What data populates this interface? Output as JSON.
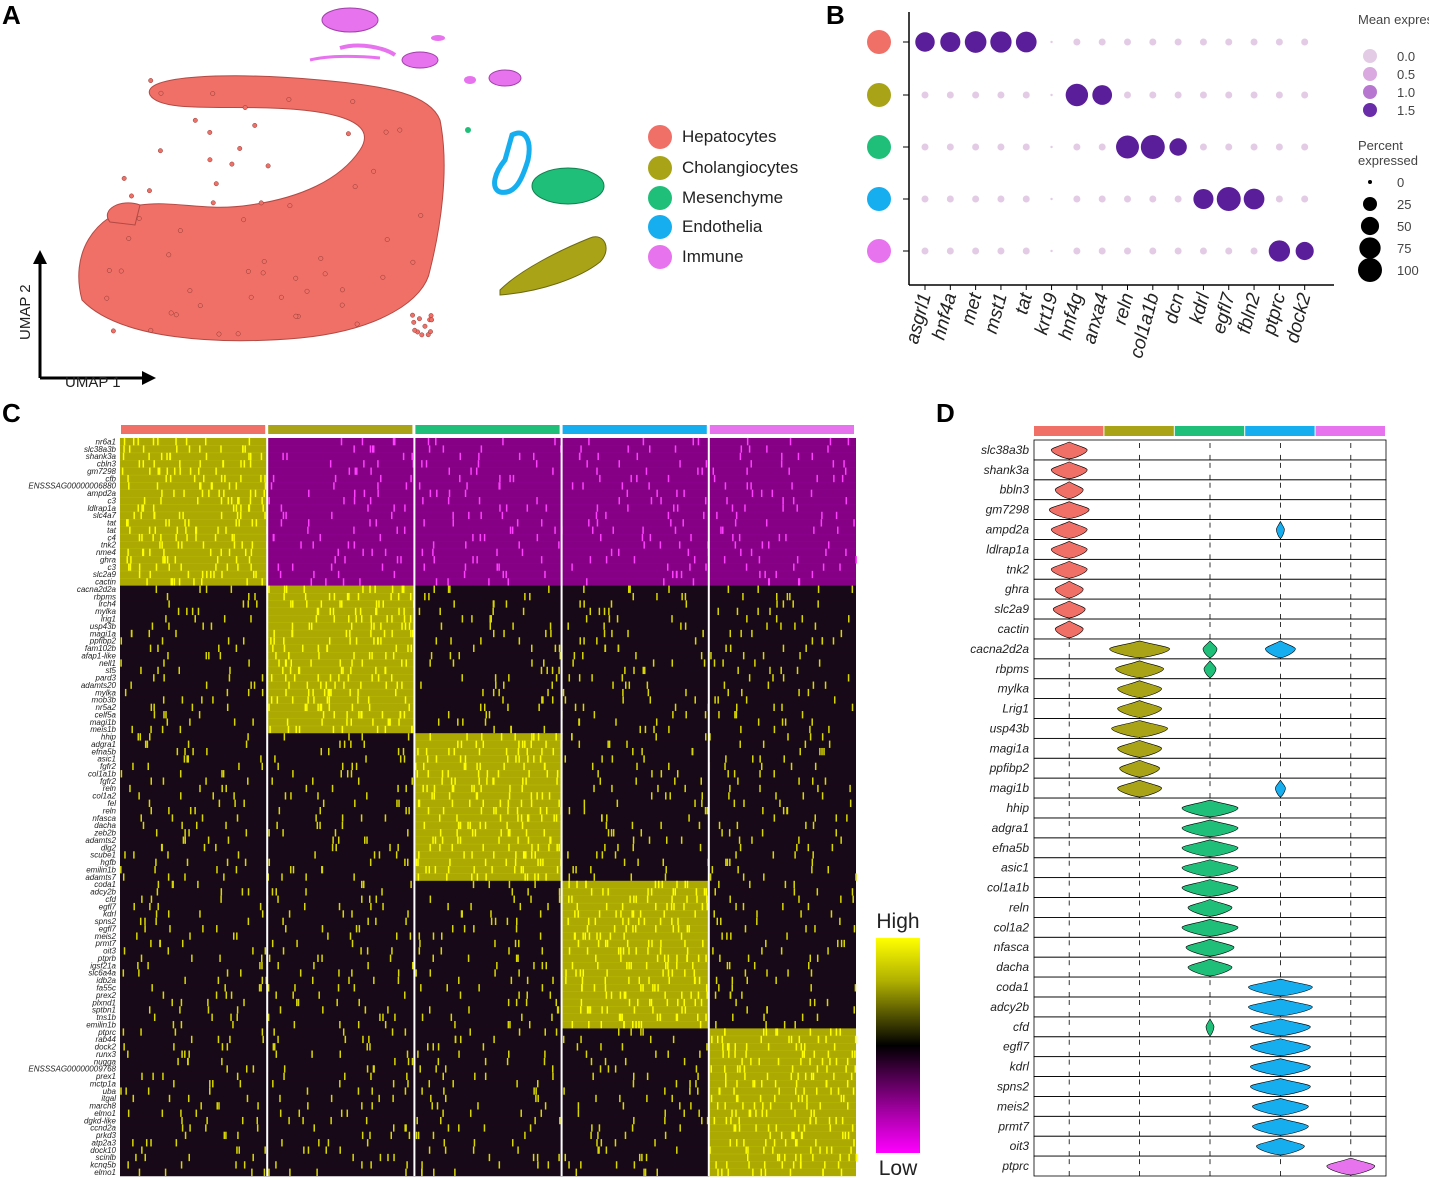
{
  "panel_labels": {
    "a": "A",
    "b": "B",
    "c": "C",
    "d": "D"
  },
  "colors": {
    "Hepatocytes": "#f07067",
    "Cholangiocytes": "#a8a317",
    "Mesenchyme": "#1fbf7a",
    "Endothelia": "#17aef0",
    "Immune": "#e873ef",
    "high": "#ffff00",
    "mid": "#000000",
    "low": "#ff00ff",
    "dot_dark": "#5a1e9a",
    "dot_light": "#e3cbe6"
  },
  "chart_data": [
    {
      "id": "umap",
      "type": "scatter",
      "title": "",
      "xlabel": "UMAP 1",
      "ylabel": "UMAP 2",
      "legend_position": "right",
      "legend": [
        "Hepatocytes",
        "Cholangiocytes",
        "Mesenchyme",
        "Endothelia",
        "Immune"
      ]
    },
    {
      "id": "dotplot",
      "type": "scatter",
      "title": "",
      "genes": [
        "asgrl1",
        "hnf4a",
        "met",
        "mst1",
        "tat",
        "krt19",
        "hnf4g",
        "anxa4",
        "reln",
        "col1a1b",
        "dcn",
        "kdrl",
        "egfl7",
        "fbln2",
        "ptprc",
        "dock2"
      ],
      "groups": [
        "Hepatocytes",
        "Cholangiocytes",
        "Mesenchyme",
        "Endothelia",
        "Immune"
      ],
      "color_legend_title": "Mean expression",
      "color_legend_values": [
        "0.0",
        "0.5",
        "1.0",
        "1.5"
      ],
      "size_legend_title": "Percent expressed",
      "size_legend_values": [
        "0",
        "25",
        "50",
        "75",
        "100"
      ],
      "expressed": [
        {
          "group": "Hepatocytes",
          "genes": [
            "asgrl1",
            "hnf4a",
            "met",
            "mst1",
            "tat"
          ],
          "percent": [
            60,
            65,
            78,
            75,
            70
          ],
          "mean": [
            1.6,
            1.6,
            1.6,
            1.6,
            1.6
          ]
        },
        {
          "group": "Cholangiocytes",
          "genes": [
            "hnf4g",
            "anxa4"
          ],
          "percent": [
            85,
            62
          ],
          "mean": [
            1.6,
            1.6
          ]
        },
        {
          "group": "Mesenchyme",
          "genes": [
            "reln",
            "col1a1b",
            "dcn"
          ],
          "percent": [
            90,
            100,
            45
          ],
          "mean": [
            1.6,
            1.6,
            1.5
          ]
        },
        {
          "group": "Endothelia",
          "genes": [
            "kdrl",
            "egfl7",
            "fbln2"
          ],
          "percent": [
            65,
            100,
            70
          ],
          "mean": [
            1.6,
            1.6,
            1.6
          ]
        },
        {
          "group": "Immune",
          "genes": [
            "ptprc",
            "dock2"
          ],
          "percent": [
            75,
            50
          ],
          "mean": [
            1.6,
            1.5
          ]
        }
      ]
    },
    {
      "id": "heatmap",
      "type": "heatmap",
      "title": "",
      "groups": [
        "Hepatocytes",
        "Cholangiocytes",
        "Mesenchyme",
        "Endothelia",
        "Immune"
      ],
      "scale_high": "High",
      "scale_low": "Low",
      "gene_blocks": [
        {
          "group": "Hepatocytes",
          "genes": [
            "nr6a1",
            "slc38a3b",
            "shank3a",
            "cbln3",
            "gm7298",
            "cfb",
            "ENSSSAG00000006880",
            "ampd2a",
            "c3",
            "ldlrap1a",
            "slc4a7",
            "tat",
            "tat",
            "c4",
            "tnk2",
            "nme4",
            "ghra",
            "c3",
            "slc2a9",
            "cactin"
          ]
        },
        {
          "group": "Cholangiocytes",
          "genes": [
            "cacna2d2a",
            "rbpms",
            "lrch4",
            "mylka",
            "lrig1",
            "usp43b",
            "magi1a",
            "ppfibp2",
            "fam102b",
            "afap1-like",
            "nell1",
            "st5",
            "pard3",
            "adamts20",
            "mylka",
            "mob3b",
            "nr5a2",
            "celf5a",
            "magi1b",
            "meis1b"
          ]
        },
        {
          "group": "Mesenchyme",
          "genes": [
            "hhip",
            "adgra1",
            "efna5b",
            "asic1",
            "fgfr2",
            "col1a1b",
            "fgfr2",
            "reln",
            "col1a2",
            "fel",
            "reln",
            "nfasca",
            "dacha",
            "zeb2b",
            "adamts2",
            "dlg2",
            "scube1",
            "hgfb",
            "emilin1b",
            "adamts7"
          ]
        },
        {
          "group": "Endothelia",
          "genes": [
            "coda1",
            "adcy2b",
            "cfd",
            "egfl7",
            "kdrl",
            "spns2",
            "egfl7",
            "meis2",
            "prmt7",
            "oit3",
            "ptprb",
            "igsf21a",
            "slc6a4a",
            "idb2a",
            "fa55c",
            "prex2",
            "plxnd1",
            "sptbn1",
            "tns1b",
            "emilin1b"
          ]
        },
        {
          "group": "Immune",
          "genes": [
            "ptprc",
            "rab44",
            "dock2",
            "runx3",
            "nugga",
            "ENSSSAG00000009768",
            "prex1",
            "mctp1a",
            "uba",
            "itgal",
            "march8",
            "elmo1",
            "dgkd-like",
            "ccnd2a",
            "prkd3",
            "atp2a3",
            "dock10",
            "scinlb",
            "kcnq5b",
            "elmo1"
          ]
        }
      ]
    },
    {
      "id": "violin",
      "type": "area",
      "title": "",
      "groups": [
        "Hepatocytes",
        "Cholangiocytes",
        "Mesenchyme",
        "Endothelia",
        "Immune"
      ],
      "genes": [
        "slc38a3b",
        "shank3a",
        "bbln3",
        "gm7298",
        "ampd2a",
        "ldlrap1a",
        "tnk2",
        "ghra",
        "slc2a9",
        "cactin",
        "cacna2d2a",
        "rbpms",
        "mylka",
        "Lrig1",
        "usp43b",
        "magi1a",
        "ppfibp2",
        "magi1b",
        "hhip",
        "adgra1",
        "efna5b",
        "asic1",
        "col1a1b",
        "reln",
        "col1a2",
        "nfasca",
        "dacha",
        "coda1",
        "adcy2b",
        "cfd",
        "egfl7",
        "kdrl",
        "spns2",
        "meis2",
        "prmt7",
        "oit3",
        "ptprc"
      ],
      "violins": [
        {
          "gene": "slc38a3b",
          "group": "Hepatocytes",
          "width": 0.9
        },
        {
          "gene": "shank3a",
          "group": "Hepatocytes",
          "width": 0.9
        },
        {
          "gene": "bbln3",
          "group": "Hepatocytes",
          "width": 0.7
        },
        {
          "gene": "gm7298",
          "group": "Hepatocytes",
          "width": 1.0
        },
        {
          "gene": "ampd2a",
          "group": "Hepatocytes",
          "width": 0.9
        },
        {
          "gene": "ampd2a",
          "group": "Endothelia",
          "width": 0.2
        },
        {
          "gene": "ldlrap1a",
          "group": "Hepatocytes",
          "width": 0.9
        },
        {
          "gene": "tnk2",
          "group": "Hepatocytes",
          "width": 0.9
        },
        {
          "gene": "ghra",
          "group": "Hepatocytes",
          "width": 0.7
        },
        {
          "gene": "slc2a9",
          "group": "Hepatocytes",
          "width": 0.8
        },
        {
          "gene": "cactin",
          "group": "Hepatocytes",
          "width": 0.7
        },
        {
          "gene": "cacna2d2a",
          "group": "Cholangiocytes",
          "width": 1.5
        },
        {
          "gene": "cacna2d2a",
          "group": "Mesenchyme",
          "width": 0.35
        },
        {
          "gene": "cacna2d2a",
          "group": "Endothelia",
          "width": 0.75
        },
        {
          "gene": "rbpms",
          "group": "Cholangiocytes",
          "width": 1.2
        },
        {
          "gene": "rbpms",
          "group": "Mesenchyme",
          "width": 0.3
        },
        {
          "gene": "mylka",
          "group": "Cholangiocytes",
          "width": 1.1
        },
        {
          "gene": "Lrig1",
          "group": "Cholangiocytes",
          "width": 1.1
        },
        {
          "gene": "usp43b",
          "group": "Cholangiocytes",
          "width": 1.4
        },
        {
          "gene": "magi1a",
          "group": "Cholangiocytes",
          "width": 1.1
        },
        {
          "gene": "ppfibp2",
          "group": "Cholangiocytes",
          "width": 1.0
        },
        {
          "gene": "magi1b",
          "group": "Cholangiocytes",
          "width": 1.1
        },
        {
          "gene": "magi1b",
          "group": "Endothelia",
          "width": 0.25
        },
        {
          "gene": "hhip",
          "group": "Mesenchyme",
          "width": 1.4
        },
        {
          "gene": "adgra1",
          "group": "Mesenchyme",
          "width": 1.4
        },
        {
          "gene": "efna5b",
          "group": "Mesenchyme",
          "width": 1.4
        },
        {
          "gene": "asic1",
          "group": "Mesenchyme",
          "width": 1.4
        },
        {
          "gene": "col1a1b",
          "group": "Mesenchyme",
          "width": 1.4
        },
        {
          "gene": "reln",
          "group": "Mesenchyme",
          "width": 1.1
        },
        {
          "gene": "col1a2",
          "group": "Mesenchyme",
          "width": 1.4
        },
        {
          "gene": "nfasca",
          "group": "Mesenchyme",
          "width": 1.2
        },
        {
          "gene": "dacha",
          "group": "Mesenchyme",
          "width": 1.1
        },
        {
          "gene": "coda1",
          "group": "Endothelia",
          "width": 1.6
        },
        {
          "gene": "adcy2b",
          "group": "Endothelia",
          "width": 1.6
        },
        {
          "gene": "cfd",
          "group": "Mesenchyme",
          "width": 0.2
        },
        {
          "gene": "cfd",
          "group": "Endothelia",
          "width": 1.5
        },
        {
          "gene": "egfl7",
          "group": "Endothelia",
          "width": 1.5
        },
        {
          "gene": "kdrl",
          "group": "Endothelia",
          "width": 1.5
        },
        {
          "gene": "spns2",
          "group": "Endothelia",
          "width": 1.5
        },
        {
          "gene": "meis2",
          "group": "Endothelia",
          "width": 1.4
        },
        {
          "gene": "prmt7",
          "group": "Endothelia",
          "width": 1.4
        },
        {
          "gene": "oit3",
          "group": "Endothelia",
          "width": 1.2
        },
        {
          "gene": "ptprc",
          "group": "Immune",
          "width": 1.2
        }
      ]
    }
  ]
}
